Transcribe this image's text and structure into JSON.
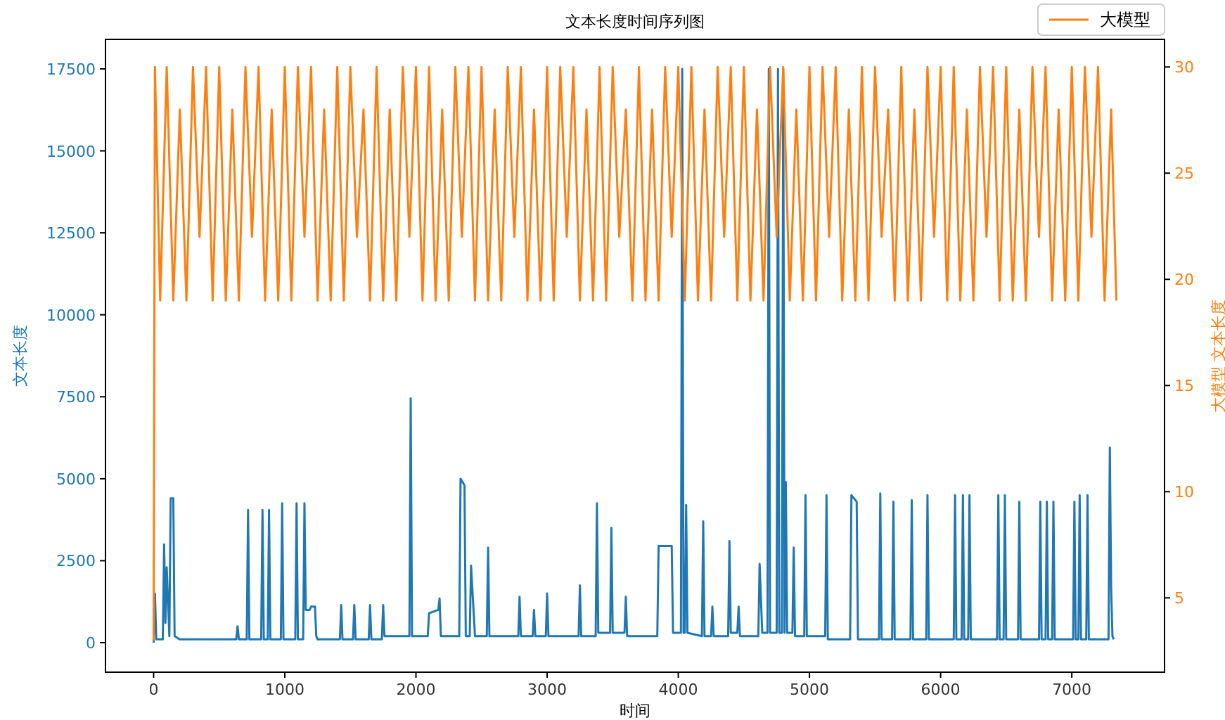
{
  "chart_data": {
    "type": "line",
    "title": "文本长度时间序列图",
    "xlabel": "时间",
    "ylabel": "文本长度",
    "y2label": "大模型 文本长度",
    "xlim": [
      -367,
      7707
    ],
    "xticks": [
      0,
      1000,
      2000,
      3000,
      4000,
      5000,
      6000,
      7000
    ],
    "ylim": [
      -900,
      18400
    ],
    "yticks": [
      0,
      2500,
      5000,
      7500,
      10000,
      12500,
      15000,
      17500
    ],
    "y2lim": [
      1.5,
      31.3
    ],
    "y2ticks": [
      5,
      10,
      15,
      20,
      25,
      30
    ],
    "legend": "top right",
    "series": [
      {
        "color": "#1f77b4",
        "x": [
          0,
          10,
          20,
          70,
          80,
          90,
          100,
          120,
          130,
          150,
          160,
          200,
          630,
          640,
          650,
          710,
          720,
          730,
          820,
          830,
          840,
          870,
          880,
          890,
          970,
          980,
          990,
          1080,
          1090,
          1100,
          1140,
          1150,
          1160,
          1190,
          1200,
          1230,
          1240,
          1250,
          1420,
          1430,
          1440,
          1520,
          1530,
          1540,
          1640,
          1650,
          1660,
          1740,
          1750,
          1760,
          1950,
          1960,
          1970,
          2090,
          2100,
          2170,
          2180,
          2190,
          2330,
          2340,
          2370,
          2380,
          2410,
          2420,
          2450,
          2540,
          2550,
          2560,
          2780,
          2790,
          2800,
          2890,
          2900,
          2910,
          2990,
          3000,
          3010,
          3240,
          3250,
          3260,
          3370,
          3380,
          3390,
          3480,
          3490,
          3500,
          3590,
          3600,
          3610,
          3840,
          3850,
          3940,
          3950,
          3960,
          4020,
          4030,
          4040,
          4050,
          4060,
          4070,
          4180,
          4190,
          4200,
          4250,
          4260,
          4270,
          4380,
          4390,
          4400,
          4450,
          4460,
          4470,
          4610,
          4620,
          4640,
          4680,
          4690,
          4700,
          4750,
          4760,
          4770,
          4790,
          4800,
          4810,
          4820,
          4830,
          4870,
          4880,
          4890,
          4960,
          4970,
          4980,
          5120,
          5130,
          5140,
          5310,
          5320,
          5360,
          5370,
          5530,
          5540,
          5550,
          5630,
          5640,
          5650,
          5770,
          5780,
          5790,
          5890,
          5900,
          5910,
          6100,
          6110,
          6120,
          6160,
          6170,
          6180,
          6210,
          6220,
          6230,
          6430,
          6440,
          6450,
          6480,
          6490,
          6500,
          6590,
          6600,
          6610,
          6750,
          6760,
          6770,
          6800,
          6810,
          6820,
          6850,
          6860,
          6870,
          7010,
          7020,
          7030,
          7050,
          7060,
          7070,
          7110,
          7120,
          7130,
          7280,
          7290,
          7300,
          7310,
          7320
        ],
        "values": [
          0,
          1500,
          100,
          100,
          3000,
          600,
          2300,
          200,
          4400,
          4400,
          200,
          100,
          100,
          500,
          100,
          100,
          4050,
          100,
          100,
          4050,
          100,
          100,
          4050,
          100,
          100,
          4250,
          100,
          100,
          4250,
          100,
          100,
          4250,
          1000,
          1000,
          1100,
          1100,
          200,
          100,
          100,
          1150,
          100,
          100,
          1150,
          100,
          100,
          1150,
          100,
          100,
          1150,
          200,
          200,
          7450,
          200,
          200,
          900,
          1000,
          1350,
          200,
          200,
          5000,
          4800,
          200,
          200,
          2350,
          200,
          200,
          2900,
          200,
          200,
          1400,
          200,
          200,
          1000,
          200,
          200,
          1500,
          200,
          200,
          1750,
          200,
          200,
          4250,
          300,
          300,
          3500,
          300,
          300,
          1400,
          200,
          200,
          2950,
          2950,
          2950,
          300,
          300,
          17500,
          300,
          300,
          4200,
          300,
          200,
          3700,
          200,
          200,
          1100,
          200,
          200,
          3100,
          300,
          300,
          1100,
          200,
          200,
          2400,
          300,
          300,
          17500,
          300,
          300,
          17500,
          300,
          300,
          17500,
          300,
          4900,
          300,
          300,
          2900,
          200,
          200,
          4500,
          200,
          200,
          4500,
          100,
          100,
          4500,
          4300,
          100,
          100,
          4550,
          100,
          100,
          4300,
          100,
          100,
          4350,
          100,
          100,
          4500,
          100,
          100,
          4500,
          100,
          100,
          4500,
          100,
          100,
          4500,
          100,
          100,
          4500,
          100,
          100,
          4500,
          100,
          100,
          4300,
          100,
          100,
          4300,
          100,
          100,
          4300,
          100,
          100,
          4300,
          100,
          100,
          4300,
          100,
          100,
          4500,
          100,
          100,
          4500,
          100,
          100,
          5950,
          1700,
          200,
          100
        ]
      },
      {
        "name": "大模型",
        "color": "#ff7f0e",
        "axis": "y2",
        "x": [
          0,
          10,
          50,
          100,
          150,
          200,
          250,
          300,
          350,
          400,
          450,
          500,
          550,
          600,
          650,
          700,
          750,
          800,
          850,
          900,
          950,
          1000,
          1050,
          1100,
          1150,
          1200,
          1250,
          1300,
          1350,
          1400,
          1450,
          1500,
          1550,
          1600,
          1650,
          1700,
          1750,
          1800,
          1850,
          1900,
          1950,
          2000,
          2050,
          2100,
          2150,
          2200,
          2250,
          2300,
          2350,
          2400,
          2450,
          2500,
          2550,
          2600,
          2650,
          2700,
          2750,
          2800,
          2850,
          2900,
          2950,
          3000,
          3050,
          3100,
          3150,
          3200,
          3250,
          3300,
          3350,
          3400,
          3450,
          3500,
          3550,
          3600,
          3650,
          3700,
          3750,
          3800,
          3850,
          3900,
          3950,
          4000,
          4050,
          4100,
          4150,
          4200,
          4250,
          4300,
          4350,
          4400,
          4450,
          4500,
          4550,
          4600,
          4650,
          4700,
          4750,
          4800,
          4850,
          4900,
          4950,
          5000,
          5050,
          5100,
          5150,
          5200,
          5250,
          5300,
          5350,
          5400,
          5450,
          5500,
          5550,
          5600,
          5650,
          5700,
          5750,
          5800,
          5850,
          5900,
          5950,
          6000,
          6050,
          6100,
          6150,
          6200,
          6250,
          6300,
          6350,
          6400,
          6450,
          6500,
          6550,
          6600,
          6650,
          6700,
          6750,
          6800,
          6850,
          6900,
          6950,
          7000,
          7050,
          7100,
          7150,
          7200,
          7250,
          7300,
          7340
        ],
        "values": [
          3,
          30,
          19,
          30,
          19,
          28,
          19,
          30,
          22,
          30,
          19,
          30,
          19,
          28,
          19,
          30,
          22,
          30,
          19,
          28,
          19,
          30,
          19,
          30,
          22,
          30,
          19,
          28,
          19,
          30,
          19,
          30,
          22,
          28,
          19,
          30,
          19,
          28,
          19,
          30,
          22,
          30,
          19,
          30,
          19,
          28,
          19,
          30,
          22,
          30,
          19,
          30,
          19,
          28,
          19,
          30,
          22,
          30,
          19,
          28,
          19,
          30,
          19,
          30,
          22,
          30,
          19,
          28,
          19,
          30,
          19,
          30,
          22,
          28,
          19,
          30,
          19,
          28,
          19,
          30,
          22,
          30,
          19,
          30,
          19,
          28,
          19,
          30,
          22,
          30,
          19,
          30,
          19,
          28,
          19,
          30,
          22,
          30,
          19,
          28,
          19,
          30,
          19,
          30,
          22,
          30,
          19,
          28,
          19,
          30,
          19,
          30,
          22,
          28,
          19,
          30,
          19,
          28,
          19,
          30,
          22,
          30,
          19,
          30,
          19,
          28,
          19,
          30,
          22,
          30,
          19,
          30,
          19,
          28,
          19,
          30,
          22,
          30,
          19,
          28,
          19,
          30,
          19,
          30,
          22,
          30,
          19,
          28,
          19
        ]
      }
    ]
  }
}
